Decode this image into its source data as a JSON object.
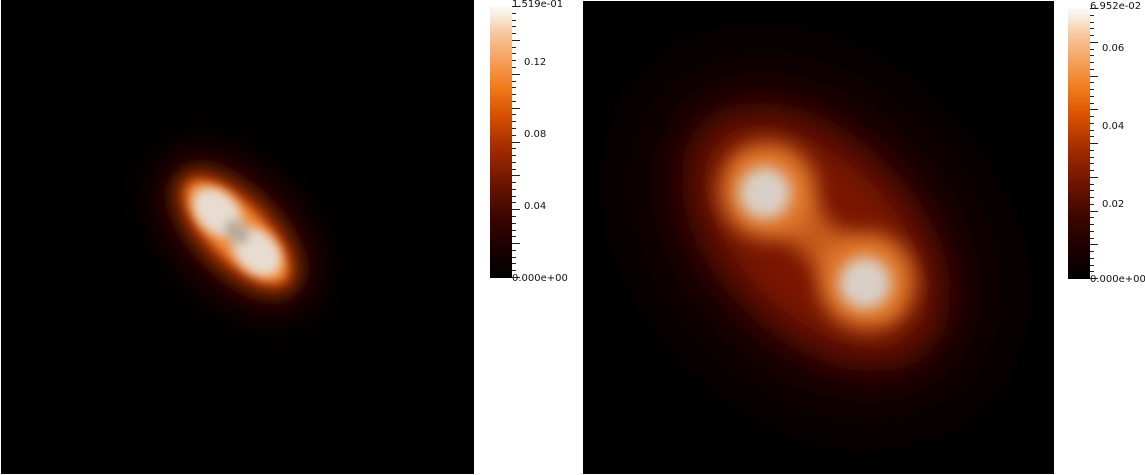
{
  "left_panel": {
    "colorbar": {
      "max_label": "1.519e-01",
      "min_label": "0.000e+00",
      "tick_labels": [
        "0.12",
        "0.08",
        "0.04"
      ]
    }
  },
  "right_panel": {
    "colorbar": {
      "max_label": "6.952e-02",
      "min_label": "0.000e+00",
      "tick_labels": [
        "0.06",
        "0.04",
        "0.02"
      ]
    }
  },
  "colors": {
    "background": "#000000",
    "colormap": [
      "#000000",
      "#6e1400",
      "#d85100",
      "#f5a05a",
      "#fbfbf8"
    ]
  }
}
